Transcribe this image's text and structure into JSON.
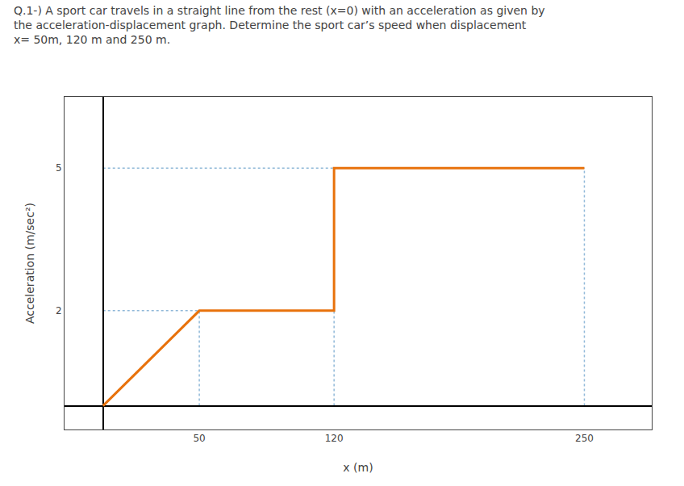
{
  "chart_data": {
    "type": "line",
    "title": "Q.1-) A sport car travels in a straight line from the rest (x=0) with an acceleration as given by\nthe acceleration-displacement graph. Determine the sport car’s speed when displacement\nx= 50m, 120 m and 250 m.",
    "xlabel": "x (m)",
    "ylabel": "Acceleration (m/sec²)",
    "x": [
      0,
      50,
      50,
      120,
      120,
      250
    ],
    "values": [
      0,
      2,
      2,
      2,
      5,
      5
    ],
    "color": "#E8720C",
    "xlim": [
      -20,
      285
    ],
    "ylim": [
      -0.5,
      6.5
    ],
    "xticks": [
      50,
      120,
      250
    ],
    "yticks": [
      2,
      5
    ],
    "grid": false
  }
}
